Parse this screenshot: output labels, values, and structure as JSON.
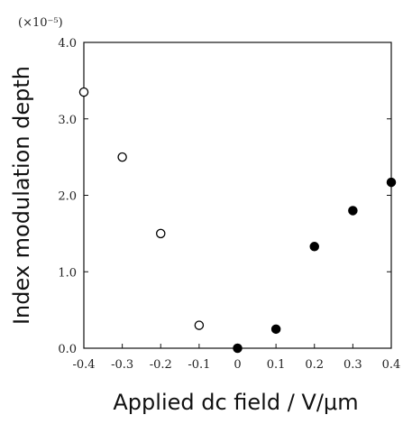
{
  "chart_data": {
    "type": "scatter",
    "xlabel": "Applied dc field / V/μm",
    "ylabel": "Index modulation depth",
    "scale_note": "(×10⁻⁵)",
    "xlim": [
      -0.4,
      0.4
    ],
    "ylim": [
      0.0,
      4.0
    ],
    "x_ticks": [
      "-0.4",
      "-0.3",
      "-0.2",
      "-0.1",
      "0",
      "0.1",
      "0.2",
      "0.3",
      "0.4"
    ],
    "x_tick_values": [
      -0.4,
      -0.3,
      -0.2,
      -0.1,
      0,
      0.1,
      0.2,
      0.3,
      0.4
    ],
    "y_ticks": [
      "0.0",
      "1.0",
      "2.0",
      "3.0",
      "4.0"
    ],
    "y_tick_values": [
      0,
      1,
      2,
      3,
      4
    ],
    "grid": false,
    "series": [
      {
        "marker": "open-circle",
        "color": "#000000",
        "x": [
          -0.4,
          -0.3,
          -0.2,
          -0.1
        ],
        "y": [
          3.35,
          2.5,
          1.5,
          0.3
        ]
      },
      {
        "marker": "filled-circle",
        "color": "#000000",
        "x": [
          0.0,
          0.1,
          0.2,
          0.3,
          0.4
        ],
        "y": [
          0.0,
          0.25,
          1.33,
          1.8,
          2.17
        ]
      }
    ]
  }
}
